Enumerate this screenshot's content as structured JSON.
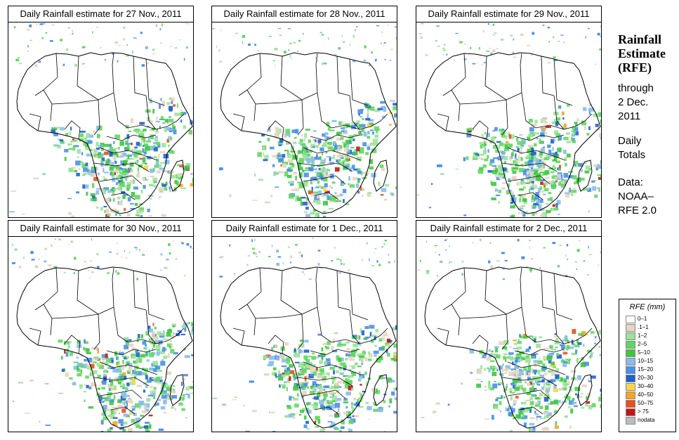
{
  "panels": [
    {
      "title": "Daily Rainfall estimate for  27 Nov., 2011",
      "day": "27 Nov. 2011"
    },
    {
      "title": "Daily Rainfall estimate for  28 Nov., 2011",
      "day": "28 Nov. 2011"
    },
    {
      "title": "Daily Rainfall estimate for  29 Nov., 2011",
      "day": "29 Nov. 2011"
    },
    {
      "title": "Daily Rainfall estimate for  30 Nov., 2011",
      "day": "30 Nov. 2011"
    },
    {
      "title": "Daily Rainfall estimate for  1 Dec., 2011",
      "day": "1 Dec. 2011"
    },
    {
      "title": "Daily Rainfall estimate for  2 Dec., 2011",
      "day": "2 Dec. 2011"
    }
  ],
  "sidebar": {
    "title_line1": "Rainfall",
    "title_line2": "Estimate",
    "title_line3": "(RFE)",
    "through_line1": "through",
    "through_line2": "2 Dec.",
    "through_line3": "2011",
    "daily_line1": "Daily",
    "daily_line2": "Totals",
    "data_line1": "Data:",
    "data_line2": "NOAA–",
    "data_line3": "RFE 2.0"
  },
  "legend": {
    "title": "RFE (mm)",
    "items": [
      {
        "label": "0–1",
        "color": "#ffffff"
      },
      {
        "label": ".1–1",
        "color": "#e6d5bf"
      },
      {
        "label": "1–2",
        "color": "#9be39b"
      },
      {
        "label": "2–5",
        "color": "#5fd85f"
      },
      {
        "label": "5–10",
        "color": "#3cc83c"
      },
      {
        "label": "10–15",
        "color": "#87bbf0"
      },
      {
        "label": "15–20",
        "color": "#4a8fe8"
      },
      {
        "label": "20–30",
        "color": "#1e5fd0"
      },
      {
        "label": "30–40",
        "color": "#f7d64a"
      },
      {
        "label": "40–50",
        "color": "#f5a623"
      },
      {
        "label": "50–75",
        "color": "#e8501e"
      },
      {
        "label": "> 75",
        "color": "#c81414"
      },
      {
        "label": "nodata",
        "color": "#bdbdbd"
      }
    ]
  }
}
